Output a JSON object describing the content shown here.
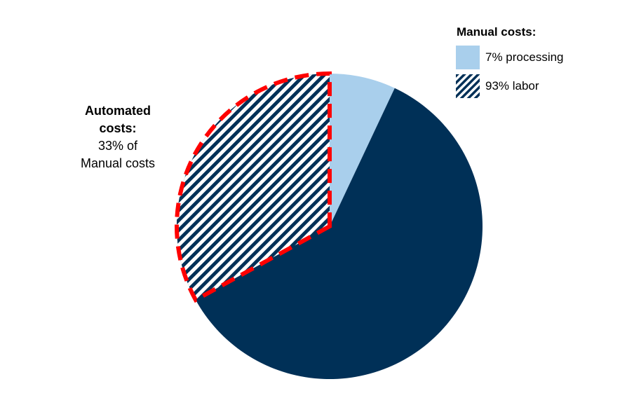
{
  "chart_data": {
    "type": "pie",
    "title": "",
    "slices": [
      {
        "label": "7% processing",
        "value": 7,
        "color": "#a9cfec"
      },
      {
        "label": "93% labor",
        "value": 93,
        "color": "#003057"
      }
    ],
    "highlighted_portion": {
      "label_lines": [
        "Automated",
        "costs:",
        "33% of",
        "Manual costs"
      ],
      "value": 33,
      "pattern": "diagonal-hatch",
      "outline_color": "#ff0000",
      "outline_style": "dashed"
    },
    "legend": {
      "title": "Manual costs:",
      "position": "top-right",
      "entries": [
        {
          "label": "7% processing",
          "swatch": "solid",
          "color": "#a9cfec"
        },
        {
          "label": "93% labor",
          "swatch": "hatch",
          "color": "#003057"
        }
      ]
    }
  }
}
